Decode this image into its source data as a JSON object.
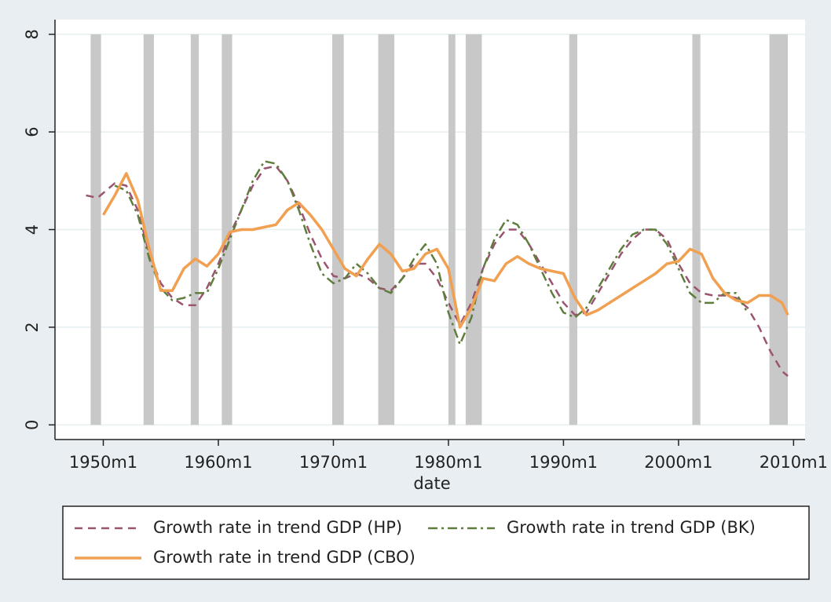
{
  "chart_data": {
    "type": "line",
    "x_label": "date",
    "xlim": [
      1945.8,
      2011
    ],
    "ylim": [
      -0.3,
      8.3
    ],
    "xticks": [
      {
        "value": 1950,
        "label": "1950m1"
      },
      {
        "value": 1960,
        "label": "1960m1"
      },
      {
        "value": 1970,
        "label": "1970m1"
      },
      {
        "value": 1980,
        "label": "1980m1"
      },
      {
        "value": 1990,
        "label": "1990m1"
      },
      {
        "value": 2000,
        "label": "2000m1"
      },
      {
        "value": 2010,
        "label": "2010m1"
      }
    ],
    "yticks": [
      0,
      2,
      4,
      6,
      8
    ],
    "grid": true,
    "recession_color": "#c8c8c8",
    "recessions": [
      [
        1948.9,
        1949.8
      ],
      [
        1953.5,
        1954.4
      ],
      [
        1957.6,
        1958.3
      ],
      [
        1960.3,
        1961.2
      ],
      [
        1969.9,
        1970.9
      ],
      [
        1973.9,
        1975.3
      ],
      [
        1980.0,
        1980.6
      ],
      [
        1981.5,
        1982.9
      ],
      [
        1990.5,
        1991.2
      ],
      [
        2001.2,
        2001.9
      ],
      [
        2007.9,
        2009.5
      ]
    ],
    "series": [
      {
        "name": "Growth rate in trend GDP (HP)",
        "color": "#9a5470",
        "dash": "10 7",
        "x": [
          1948.5,
          1949.5,
          1951,
          1952,
          1953,
          1954,
          1955,
          1956,
          1957,
          1958,
          1959,
          1960,
          1961,
          1962,
          1963,
          1964,
          1965,
          1966,
          1967,
          1968,
          1969,
          1970,
          1971,
          1972,
          1973,
          1974,
          1975,
          1976,
          1977,
          1978,
          1979,
          1980,
          1981,
          1982,
          1983,
          1984,
          1985,
          1986,
          1987,
          1988,
          1989,
          1990,
          1991,
          1992,
          1993,
          1994,
          1995,
          1996,
          1997,
          1998,
          1999,
          2000,
          2001,
          2002,
          2003,
          2004,
          2005,
          2006,
          2007,
          2008,
          2009,
          2009.5
        ],
        "values": [
          4.7,
          4.65,
          4.95,
          4.9,
          4.4,
          3.5,
          2.9,
          2.6,
          2.45,
          2.45,
          2.8,
          3.3,
          3.9,
          4.4,
          4.9,
          5.25,
          5.3,
          5.0,
          4.5,
          3.9,
          3.4,
          3.05,
          3.0,
          3.1,
          3.0,
          2.8,
          2.75,
          3.0,
          3.3,
          3.3,
          3.0,
          2.5,
          2.05,
          2.5,
          3.2,
          3.7,
          4.0,
          4.0,
          3.7,
          3.3,
          2.9,
          2.5,
          2.25,
          2.3,
          2.7,
          3.1,
          3.5,
          3.8,
          4.0,
          4.0,
          3.8,
          3.3,
          2.9,
          2.7,
          2.65,
          2.65,
          2.6,
          2.4,
          2.0,
          1.5,
          1.1,
          1.0
        ]
      },
      {
        "name": "Growth rate in trend GDP (BK)",
        "color": "#5f7d3c",
        "dash": "12 5 3 5",
        "x": [
          1951,
          1952,
          1953,
          1954,
          1955,
          1956,
          1957,
          1958,
          1959,
          1960,
          1961,
          1962,
          1963,
          1964,
          1965,
          1966,
          1967,
          1968,
          1969,
          1970,
          1971,
          1972,
          1973,
          1974,
          1975,
          1976,
          1977,
          1978,
          1979,
          1980,
          1981,
          1982,
          1983,
          1984,
          1985,
          1986,
          1987,
          1988,
          1989,
          1990,
          1991,
          1992,
          1993,
          1994,
          1995,
          1996,
          1997,
          1998,
          1999,
          2000,
          2001,
          2002,
          2003,
          2004,
          2005,
          2006
        ],
        "values": [
          4.9,
          4.8,
          4.3,
          3.4,
          2.8,
          2.55,
          2.6,
          2.7,
          2.7,
          3.2,
          3.8,
          4.4,
          5.0,
          5.4,
          5.35,
          5.0,
          4.4,
          3.7,
          3.1,
          2.9,
          3.0,
          3.3,
          3.1,
          2.8,
          2.7,
          3.0,
          3.4,
          3.7,
          3.3,
          2.3,
          1.65,
          2.2,
          3.2,
          3.8,
          4.2,
          4.1,
          3.7,
          3.2,
          2.7,
          2.3,
          2.2,
          2.4,
          2.8,
          3.2,
          3.6,
          3.9,
          4.0,
          4.0,
          3.7,
          3.2,
          2.7,
          2.5,
          2.5,
          2.7,
          2.7,
          2.3
        ]
      },
      {
        "name": "Growth rate in trend GDP (CBO)",
        "color": "#f0a050",
        "dash": "none",
        "x": [
          1950,
          1951,
          1952,
          1953,
          1954,
          1955,
          1956,
          1957,
          1958,
          1959,
          1960,
          1961,
          1962,
          1963,
          1964,
          1965,
          1966,
          1967,
          1968,
          1969,
          1970,
          1971,
          1972,
          1973,
          1974,
          1975,
          1976,
          1977,
          1978,
          1979,
          1980,
          1981,
          1982,
          1983,
          1984,
          1985,
          1986,
          1987,
          1988,
          1989,
          1990,
          1991,
          1992,
          1993,
          1994,
          1995,
          1996,
          1997,
          1998,
          1999,
          2000,
          2001,
          2002,
          2003,
          2004,
          2005,
          2006,
          2007,
          2008,
          2009,
          2009.5
        ],
        "values": [
          4.3,
          4.7,
          5.15,
          4.6,
          3.6,
          2.75,
          2.75,
          3.2,
          3.4,
          3.25,
          3.5,
          3.95,
          4.0,
          4.0,
          4.05,
          4.1,
          4.4,
          4.55,
          4.3,
          4.0,
          3.6,
          3.2,
          3.05,
          3.4,
          3.7,
          3.5,
          3.15,
          3.2,
          3.5,
          3.6,
          3.2,
          2.0,
          2.4,
          3.0,
          2.95,
          3.3,
          3.45,
          3.3,
          3.2,
          3.15,
          3.1,
          2.6,
          2.25,
          2.35,
          2.5,
          2.65,
          2.8,
          2.95,
          3.1,
          3.3,
          3.35,
          3.6,
          3.5,
          3.0,
          2.7,
          2.55,
          2.5,
          2.65,
          2.65,
          2.5,
          2.25
        ]
      }
    ]
  }
}
